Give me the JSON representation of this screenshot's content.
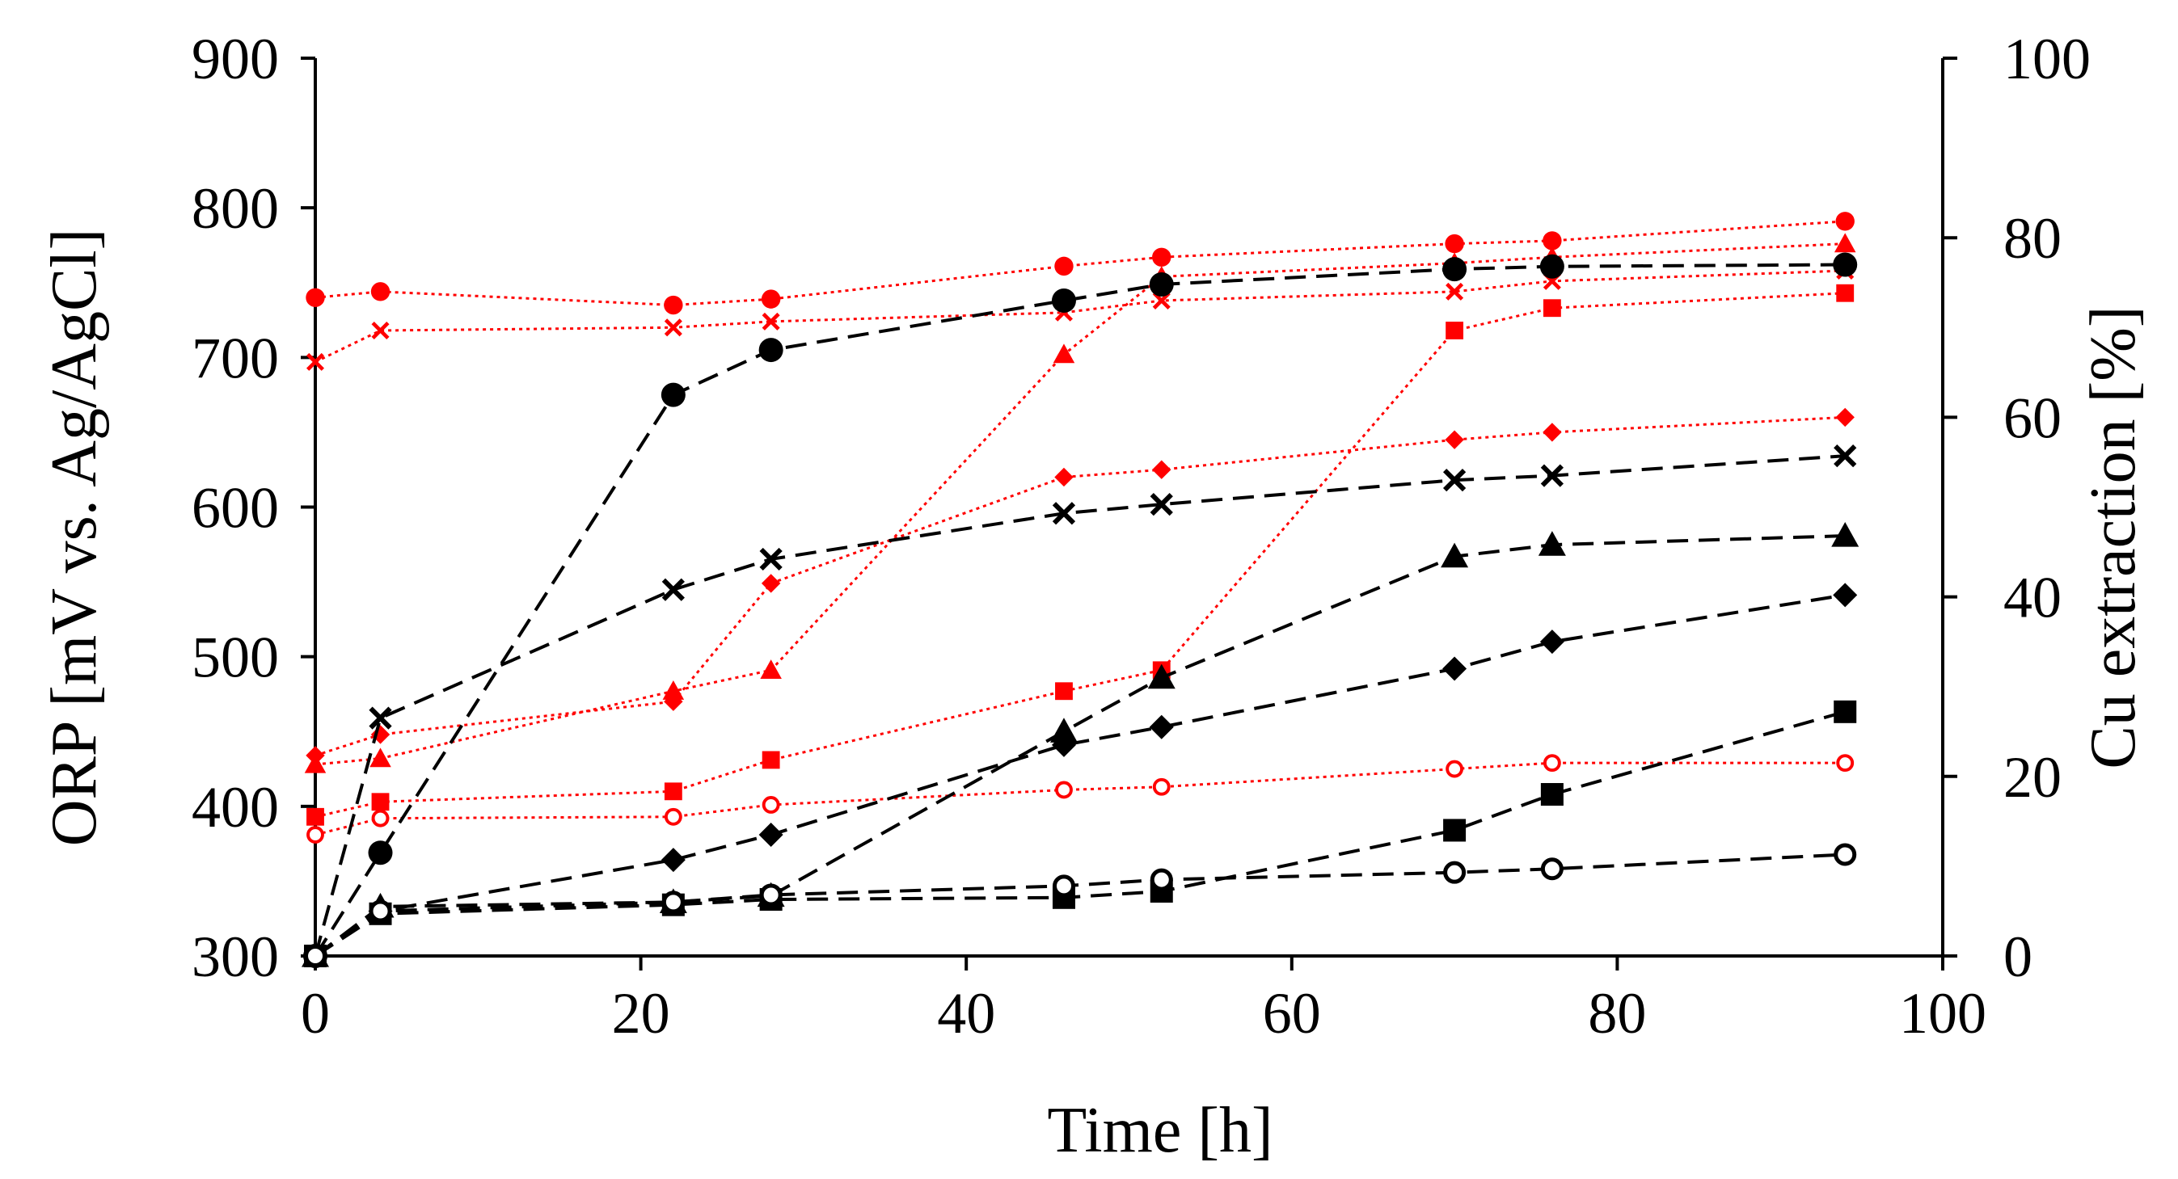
{
  "chart_data": {
    "type": "line",
    "title": "",
    "xlabel": "Time [h]",
    "ylabel_left": "ORP [mV vs. Ag/AgCl]",
    "ylabel_right": "Cu extraction [%]",
    "xlim": [
      0,
      100
    ],
    "ylim_left": [
      300,
      900
    ],
    "ylim_right": [
      0,
      100
    ],
    "x_ticks": [
      "0",
      "20",
      "40",
      "60",
      "80",
      "100"
    ],
    "y_left_ticks": [
      "300",
      "400",
      "500",
      "600",
      "700",
      "800",
      "900"
    ],
    "y_right_ticks": [
      "0",
      "20",
      "40",
      "60",
      "80",
      "100"
    ],
    "grid": false,
    "legend": "none",
    "colors": {
      "cu_extraction": "#000000",
      "orp": "#ff0000"
    },
    "series": [
      {
        "group": "cu_extraction",
        "axis": "right",
        "marker": "circle",
        "x": [
          0,
          4,
          22,
          28,
          46,
          52,
          70,
          76,
          94
        ],
        "values": [
          0,
          11.5,
          62.5,
          67.5,
          73,
          74.8,
          76.5,
          76.8,
          77
        ]
      },
      {
        "group": "cu_extraction",
        "axis": "right",
        "marker": "x",
        "x": [
          0,
          4,
          22,
          28,
          46,
          52,
          70,
          76,
          94
        ],
        "values": [
          0,
          26.5,
          40.8,
          44.2,
          49.3,
          50.3,
          53,
          53.5,
          55.7
        ]
      },
      {
        "group": "cu_extraction",
        "axis": "right",
        "marker": "triangle",
        "x": [
          0,
          4,
          22,
          28,
          46,
          52,
          70,
          76,
          94
        ],
        "values": [
          0,
          5.5,
          6,
          6.7,
          25,
          31,
          44.5,
          45.8,
          46.8
        ]
      },
      {
        "group": "cu_extraction",
        "axis": "right",
        "marker": "diamond",
        "x": [
          0,
          4,
          22,
          28,
          46,
          52,
          70,
          76,
          94
        ],
        "values": [
          0,
          5,
          10.7,
          13.5,
          23.5,
          25.5,
          32,
          35,
          40.2
        ]
      },
      {
        "group": "cu_extraction",
        "axis": "right",
        "marker": "square",
        "x": [
          0,
          4,
          22,
          28,
          46,
          52,
          70,
          76,
          94
        ],
        "values": [
          0,
          4.7,
          5.7,
          6.3,
          6.5,
          7.2,
          14,
          18,
          27.2
        ]
      },
      {
        "group": "cu_extraction",
        "axis": "right",
        "marker": "open-circle",
        "x": [
          0,
          4,
          22,
          28,
          46,
          52,
          70,
          76,
          94
        ],
        "values": [
          0,
          5,
          6,
          6.8,
          7.8,
          8.5,
          9.3,
          9.7,
          11.3
        ]
      },
      {
        "group": "orp",
        "axis": "left",
        "marker": "circle",
        "x": [
          0,
          4,
          22,
          28,
          46,
          52,
          70,
          76,
          94
        ],
        "values": [
          740,
          744,
          735,
          739,
          761,
          767,
          776,
          778,
          791
        ]
      },
      {
        "group": "orp",
        "axis": "left",
        "marker": "x",
        "x": [
          0,
          4,
          22,
          28,
          46,
          52,
          70,
          76,
          94
        ],
        "values": [
          697,
          718,
          720,
          724,
          730,
          738,
          744,
          751,
          758
        ]
      },
      {
        "group": "orp",
        "axis": "left",
        "marker": "triangle",
        "x": [
          0,
          4,
          22,
          28,
          46,
          52,
          70,
          76,
          94
        ],
        "values": [
          428,
          432,
          477,
          491,
          702,
          754,
          763,
          767,
          776
        ]
      },
      {
        "group": "orp",
        "axis": "left",
        "marker": "diamond",
        "x": [
          0,
          4,
          22,
          28,
          46,
          52,
          70,
          76,
          94
        ],
        "values": [
          434,
          448,
          470,
          549,
          620,
          625,
          645,
          650,
          660
        ]
      },
      {
        "group": "orp",
        "axis": "left",
        "marker": "square",
        "x": [
          0,
          4,
          22,
          28,
          46,
          52,
          70,
          76,
          94
        ],
        "values": [
          393,
          403,
          410,
          431,
          477,
          491,
          718,
          733,
          743
        ]
      },
      {
        "group": "orp",
        "axis": "left",
        "marker": "open-circle",
        "x": [
          0,
          4,
          22,
          28,
          46,
          52,
          70,
          76,
          94
        ],
        "values": [
          381,
          392,
          393,
          401,
          411,
          413,
          425,
          429,
          429
        ]
      }
    ]
  }
}
